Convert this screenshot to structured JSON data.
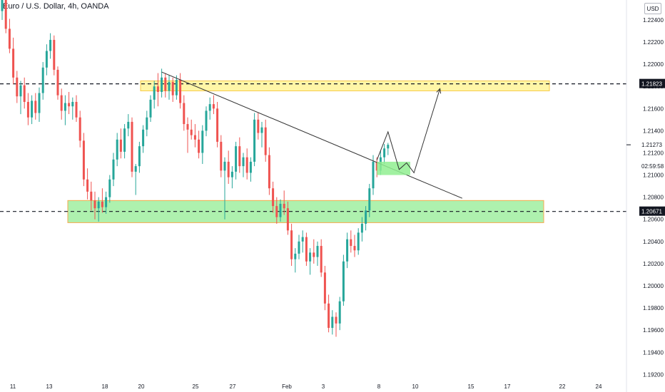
{
  "header": {
    "title": "Euro / U.S. Dollar, 4h, OANDA",
    "currency_button": "USD"
  },
  "colors": {
    "up_candle": "#26a69a",
    "down_candle": "#ef5350",
    "resistance_zone": "#fff59d",
    "resistance_border": "#f7c948",
    "support_zone": "#a5f0a5",
    "support_border": "#f7a94d",
    "projection_zone": "#90ee90",
    "line": "#333333",
    "axis_text": "#131722"
  },
  "chart_data": {
    "type": "candlestick",
    "symbol": "Euro / U.S. Dollar",
    "timeframe": "4h",
    "source": "OANDA",
    "ylim": [
      1.1917,
      1.2258
    ],
    "y_ticks": [
      "1.22400",
      "1.22200",
      "1.22000",
      "1.21800",
      "1.21600",
      "1.21400",
      "1.21200",
      "1.21000",
      "1.20800",
      "1.20600",
      "1.20400",
      "1.20200",
      "1.20000",
      "1.19800",
      "1.19600",
      "1.19400",
      "1.19200"
    ],
    "x_ticks": [
      "11",
      "13",
      "18",
      "20",
      "25",
      "27",
      "Feb",
      "3",
      "8",
      "10",
      "15",
      "17",
      "22",
      "24"
    ],
    "price_labels": [
      {
        "label": "1.21823",
        "value": 1.21823,
        "style": "boxed"
      },
      {
        "label": "1.21273",
        "value": 1.21273,
        "style": "plain"
      },
      {
        "label": "02:59:58",
        "value": 1.2108,
        "style": "countdown"
      },
      {
        "label": "1.20671",
        "value": 1.20671,
        "style": "boxed"
      }
    ],
    "horizontal_lines": [
      1.21823,
      1.20671
    ],
    "zones": [
      {
        "name": "resistance",
        "top": 1.2185,
        "bottom": 1.2176
      },
      {
        "name": "support",
        "top": 1.2077,
        "bottom": 1.2057
      }
    ],
    "trendline": {
      "start": {
        "bar": 43,
        "price": 1.2193
      },
      "end": {
        "bar": 124,
        "price": 1.2079
      }
    },
    "projection": {
      "zigzag": [
        [
          101,
          1.21135
        ],
        [
          104,
          1.2139
        ],
        [
          107,
          1.2105
        ],
        [
          109,
          1.2111
        ],
        [
          111,
          1.2102
        ],
        [
          118,
          1.2178
        ]
      ],
      "arrow_target": [
        118,
        1.2178
      ],
      "box": {
        "bar_start": 101,
        "bar_end": 110,
        "top": 1.2112,
        "bottom": 1.21
      }
    },
    "candles": [
      [
        1.2248,
        1.2262,
        1.224,
        1.2258
      ],
      [
        1.2258,
        1.2262,
        1.2228,
        1.2232
      ],
      [
        1.2232,
        1.2241,
        1.221,
        1.2214
      ],
      [
        1.2214,
        1.2224,
        1.2182,
        1.2188
      ],
      [
        1.2188,
        1.2194,
        1.2165,
        1.2171
      ],
      [
        1.2171,
        1.2185,
        1.2155,
        1.2181
      ],
      [
        1.2181,
        1.2188,
        1.216,
        1.2166
      ],
      [
        1.2166,
        1.2174,
        1.2145,
        1.2152
      ],
      [
        1.2152,
        1.2172,
        1.2146,
        1.2167
      ],
      [
        1.2167,
        1.2174,
        1.215,
        1.2156
      ],
      [
        1.2156,
        1.2179,
        1.2148,
        1.2174
      ],
      [
        1.2174,
        1.2202,
        1.2168,
        1.2197
      ],
      [
        1.2197,
        1.2218,
        1.219,
        1.2212
      ],
      [
        1.2212,
        1.2228,
        1.2205,
        1.2222
      ],
      [
        1.2222,
        1.2226,
        1.219,
        1.2195
      ],
      [
        1.2195,
        1.2198,
        1.2168,
        1.2172
      ],
      [
        1.2172,
        1.2178,
        1.215,
        1.2158
      ],
      [
        1.2158,
        1.2172,
        1.2145,
        1.2165
      ],
      [
        1.2165,
        1.2175,
        1.2155,
        1.2162
      ],
      [
        1.2162,
        1.217,
        1.215,
        1.2166
      ],
      [
        1.2166,
        1.2172,
        1.2148,
        1.2152
      ],
      [
        1.2152,
        1.2158,
        1.2125,
        1.2131
      ],
      [
        1.2131,
        1.2138,
        1.209,
        1.2096
      ],
      [
        1.2096,
        1.2106,
        1.2078,
        1.2085
      ],
      [
        1.2085,
        1.2094,
        1.2068,
        1.2077
      ],
      [
        1.2077,
        1.2085,
        1.206,
        1.207
      ],
      [
        1.207,
        1.208,
        1.2058,
        1.2076
      ],
      [
        1.2076,
        1.2088,
        1.2066,
        1.2071
      ],
      [
        1.2071,
        1.2085,
        1.2065,
        1.208
      ],
      [
        1.208,
        1.21,
        1.2075,
        1.2096
      ],
      [
        1.2096,
        1.212,
        1.209,
        1.2114
      ],
      [
        1.2114,
        1.2138,
        1.2108,
        1.2132
      ],
      [
        1.2132,
        1.2142,
        1.2115,
        1.2121
      ],
      [
        1.2121,
        1.2146,
        1.2115,
        1.2142
      ],
      [
        1.2142,
        1.2155,
        1.2135,
        1.2148
      ],
      [
        1.2148,
        1.2152,
        1.2098,
        1.2103
      ],
      [
        1.2103,
        1.211,
        1.2082,
        1.2108
      ],
      [
        1.2108,
        1.213,
        1.2102,
        1.2126
      ],
      [
        1.2126,
        1.2145,
        1.212,
        1.2141
      ],
      [
        1.2141,
        1.2158,
        1.2135,
        1.2152
      ],
      [
        1.2152,
        1.2172,
        1.2148,
        1.2168
      ],
      [
        1.2168,
        1.2185,
        1.216,
        1.218
      ],
      [
        1.218,
        1.2192,
        1.2162,
        1.2175
      ],
      [
        1.2175,
        1.2196,
        1.217,
        1.2188
      ],
      [
        1.2188,
        1.2192,
        1.217,
        1.2176
      ],
      [
        1.2176,
        1.219,
        1.2168,
        1.2184
      ],
      [
        1.2184,
        1.2188,
        1.2166,
        1.2172
      ],
      [
        1.2172,
        1.219,
        1.2168,
        1.2186
      ],
      [
        1.2186,
        1.2192,
        1.216,
        1.2165
      ],
      [
        1.2165,
        1.2172,
        1.214,
        1.2146
      ],
      [
        1.2146,
        1.2152,
        1.212,
        1.2141
      ],
      [
        1.2141,
        1.215,
        1.2132,
        1.2136
      ],
      [
        1.2136,
        1.2146,
        1.2125,
        1.2132
      ],
      [
        1.2132,
        1.214,
        1.2115,
        1.212
      ],
      [
        1.212,
        1.2145,
        1.211,
        1.214
      ],
      [
        1.214,
        1.2162,
        1.2135,
        1.2158
      ],
      [
        1.2158,
        1.217,
        1.215,
        1.2164
      ],
      [
        1.2164,
        1.2172,
        1.2155,
        1.216
      ],
      [
        1.216,
        1.2166,
        1.2125,
        1.213
      ],
      [
        1.213,
        1.2136,
        1.2098,
        1.2104
      ],
      [
        1.2104,
        1.2116,
        1.206,
        1.2112
      ],
      [
        1.2112,
        1.2122,
        1.2092,
        1.2098
      ],
      [
        1.2098,
        1.2108,
        1.2088,
        1.2103
      ],
      [
        1.2103,
        1.213,
        1.2096,
        1.2126
      ],
      [
        1.2126,
        1.2134,
        1.2102,
        1.2108
      ],
      [
        1.2108,
        1.212,
        1.2098,
        1.2116
      ],
      [
        1.2116,
        1.2124,
        1.2096,
        1.2102
      ],
      [
        1.2102,
        1.2116,
        1.2094,
        1.2112
      ],
      [
        1.2112,
        1.2156,
        1.2108,
        1.215
      ],
      [
        1.215,
        1.2156,
        1.2132,
        1.2138
      ],
      [
        1.2138,
        1.2148,
        1.2125,
        1.2143
      ],
      [
        1.2143,
        1.215,
        1.2112,
        1.2118
      ],
      [
        1.2118,
        1.2125,
        1.2082,
        1.2088
      ],
      [
        1.2088,
        1.2094,
        1.2066,
        1.2072
      ],
      [
        1.2072,
        1.208,
        1.2056,
        1.2062
      ],
      [
        1.2062,
        1.2078,
        1.2058,
        1.2074
      ],
      [
        1.2074,
        1.2086,
        1.2064,
        1.207
      ],
      [
        1.207,
        1.2076,
        1.2046,
        1.205
      ],
      [
        1.205,
        1.2056,
        1.2018,
        1.2024
      ],
      [
        1.2024,
        1.2034,
        1.2012,
        1.2029
      ],
      [
        1.2029,
        1.2046,
        1.2024,
        1.204
      ],
      [
        1.204,
        1.205,
        1.203,
        1.2044
      ],
      [
        1.2044,
        1.2048,
        1.2018,
        1.2022
      ],
      [
        1.2022,
        1.2034,
        1.201,
        1.203
      ],
      [
        1.203,
        1.2042,
        1.202,
        1.2026
      ],
      [
        1.2026,
        1.204,
        1.2018,
        1.2036
      ],
      [
        1.2036,
        1.2042,
        1.2008,
        1.2012
      ],
      [
        1.2012,
        1.2018,
        1.1978,
        1.1984
      ],
      [
        1.1984,
        1.1992,
        1.1958,
        1.1962
      ],
      [
        1.1962,
        1.1978,
        1.1956,
        1.1972
      ],
      [
        1.1972,
        1.1976,
        1.1954,
        1.1966
      ],
      [
        1.1966,
        1.199,
        1.196,
        1.1986
      ],
      [
        1.1986,
        1.2028,
        1.1982,
        1.2022
      ],
      [
        1.2022,
        1.2048,
        1.2016,
        1.2042
      ],
      [
        1.2042,
        1.205,
        1.203,
        1.2036
      ],
      [
        1.2036,
        1.2046,
        1.2026,
        1.2032
      ],
      [
        1.2032,
        1.2052,
        1.2028,
        1.2048
      ],
      [
        1.2048,
        1.2062,
        1.204,
        1.2056
      ],
      [
        1.2056,
        1.2072,
        1.205,
        1.2068
      ],
      [
        1.2068,
        1.2092,
        1.2062,
        1.2088
      ],
      [
        1.2088,
        1.2118,
        1.2082,
        1.2112
      ],
      [
        1.2112,
        1.2116,
        1.2098,
        1.2104
      ],
      [
        1.2104,
        1.2122,
        1.21,
        1.2116
      ],
      [
        1.2116,
        1.2128,
        1.211,
        1.2124
      ],
      [
        1.2124,
        1.2129,
        1.2118,
        1.21273
      ]
    ]
  }
}
